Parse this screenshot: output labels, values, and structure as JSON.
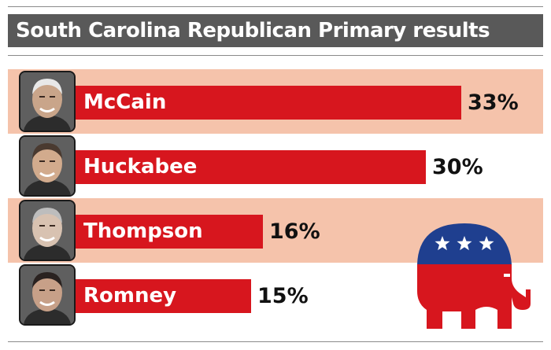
{
  "title": "South Carolina Republican Primary results",
  "colors": {
    "bar": "#d7161e",
    "band": "#f5c3ab",
    "title_bar": "#595959",
    "logo_blue": "#1f3f8f",
    "logo_red": "#d7161e"
  },
  "icons": [
    "candidate-photo-icon",
    "republican-elephant-logo-icon",
    "star-icon"
  ],
  "chart_data": {
    "type": "bar",
    "orientation": "horizontal",
    "title": "South Carolina Republican Primary results",
    "xlabel": "",
    "ylabel": "",
    "unit": "%",
    "grid": false,
    "xlim": [
      0,
      33
    ],
    "categories": [
      "McCain",
      "Huckabee",
      "Thompson",
      "Romney"
    ],
    "values": [
      33,
      30,
      16,
      15
    ],
    "value_labels": [
      "33%",
      "30%",
      "16%",
      "15%"
    ]
  }
}
